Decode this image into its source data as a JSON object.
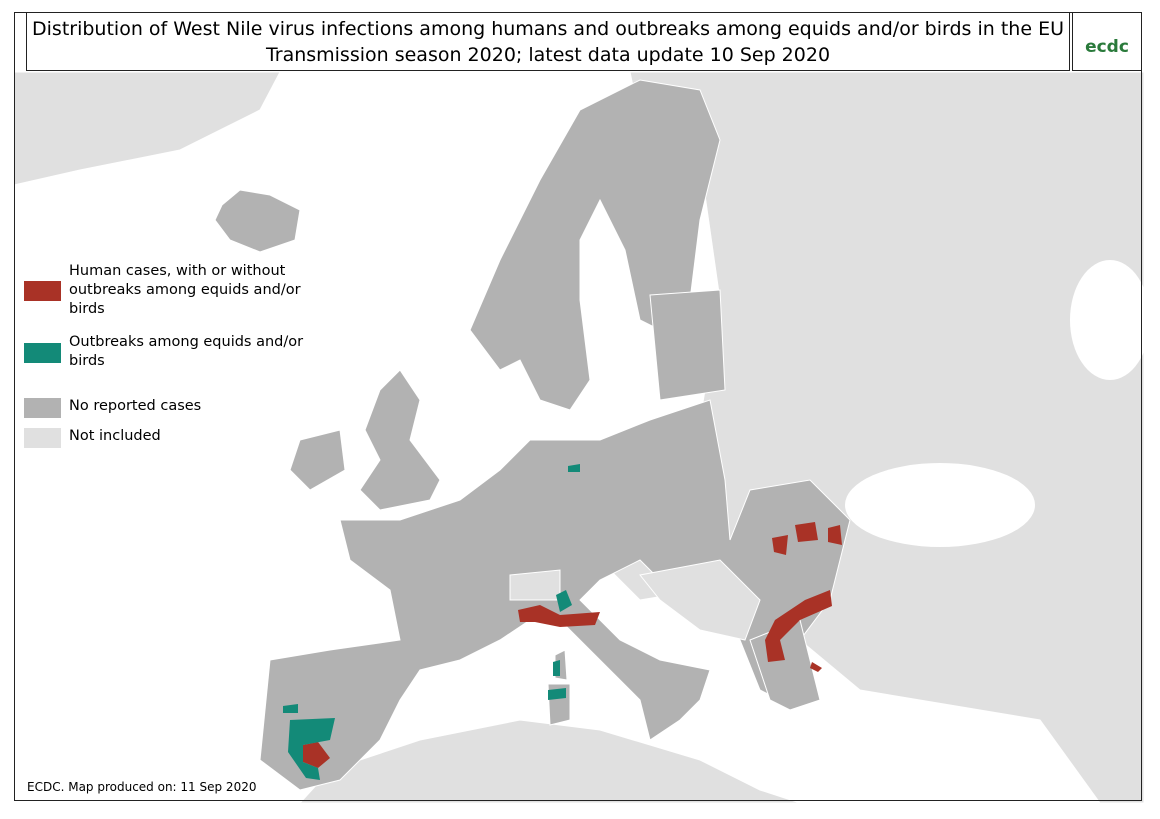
{
  "header": {
    "title": "Distribution of West Nile virus infections among humans and outbreaks among equids and/or birds in the EU",
    "subtitle": "Transmission season 2020; latest data update 10 Sep 2020",
    "logo": "ecdc"
  },
  "legend": {
    "items": [
      {
        "label": "Human cases, with or without outbreaks among equids and/or birds",
        "color": "#a93226"
      },
      {
        "label": "Outbreaks among equids and/or birds",
        "color": "#138a78"
      },
      {
        "label": "No reported cases",
        "color": "#b2b2b2"
      },
      {
        "label": "Not included",
        "color": "#e0e0e0"
      }
    ]
  },
  "footer": "ECDC. Map produced on: 11 Sep 2020"
}
